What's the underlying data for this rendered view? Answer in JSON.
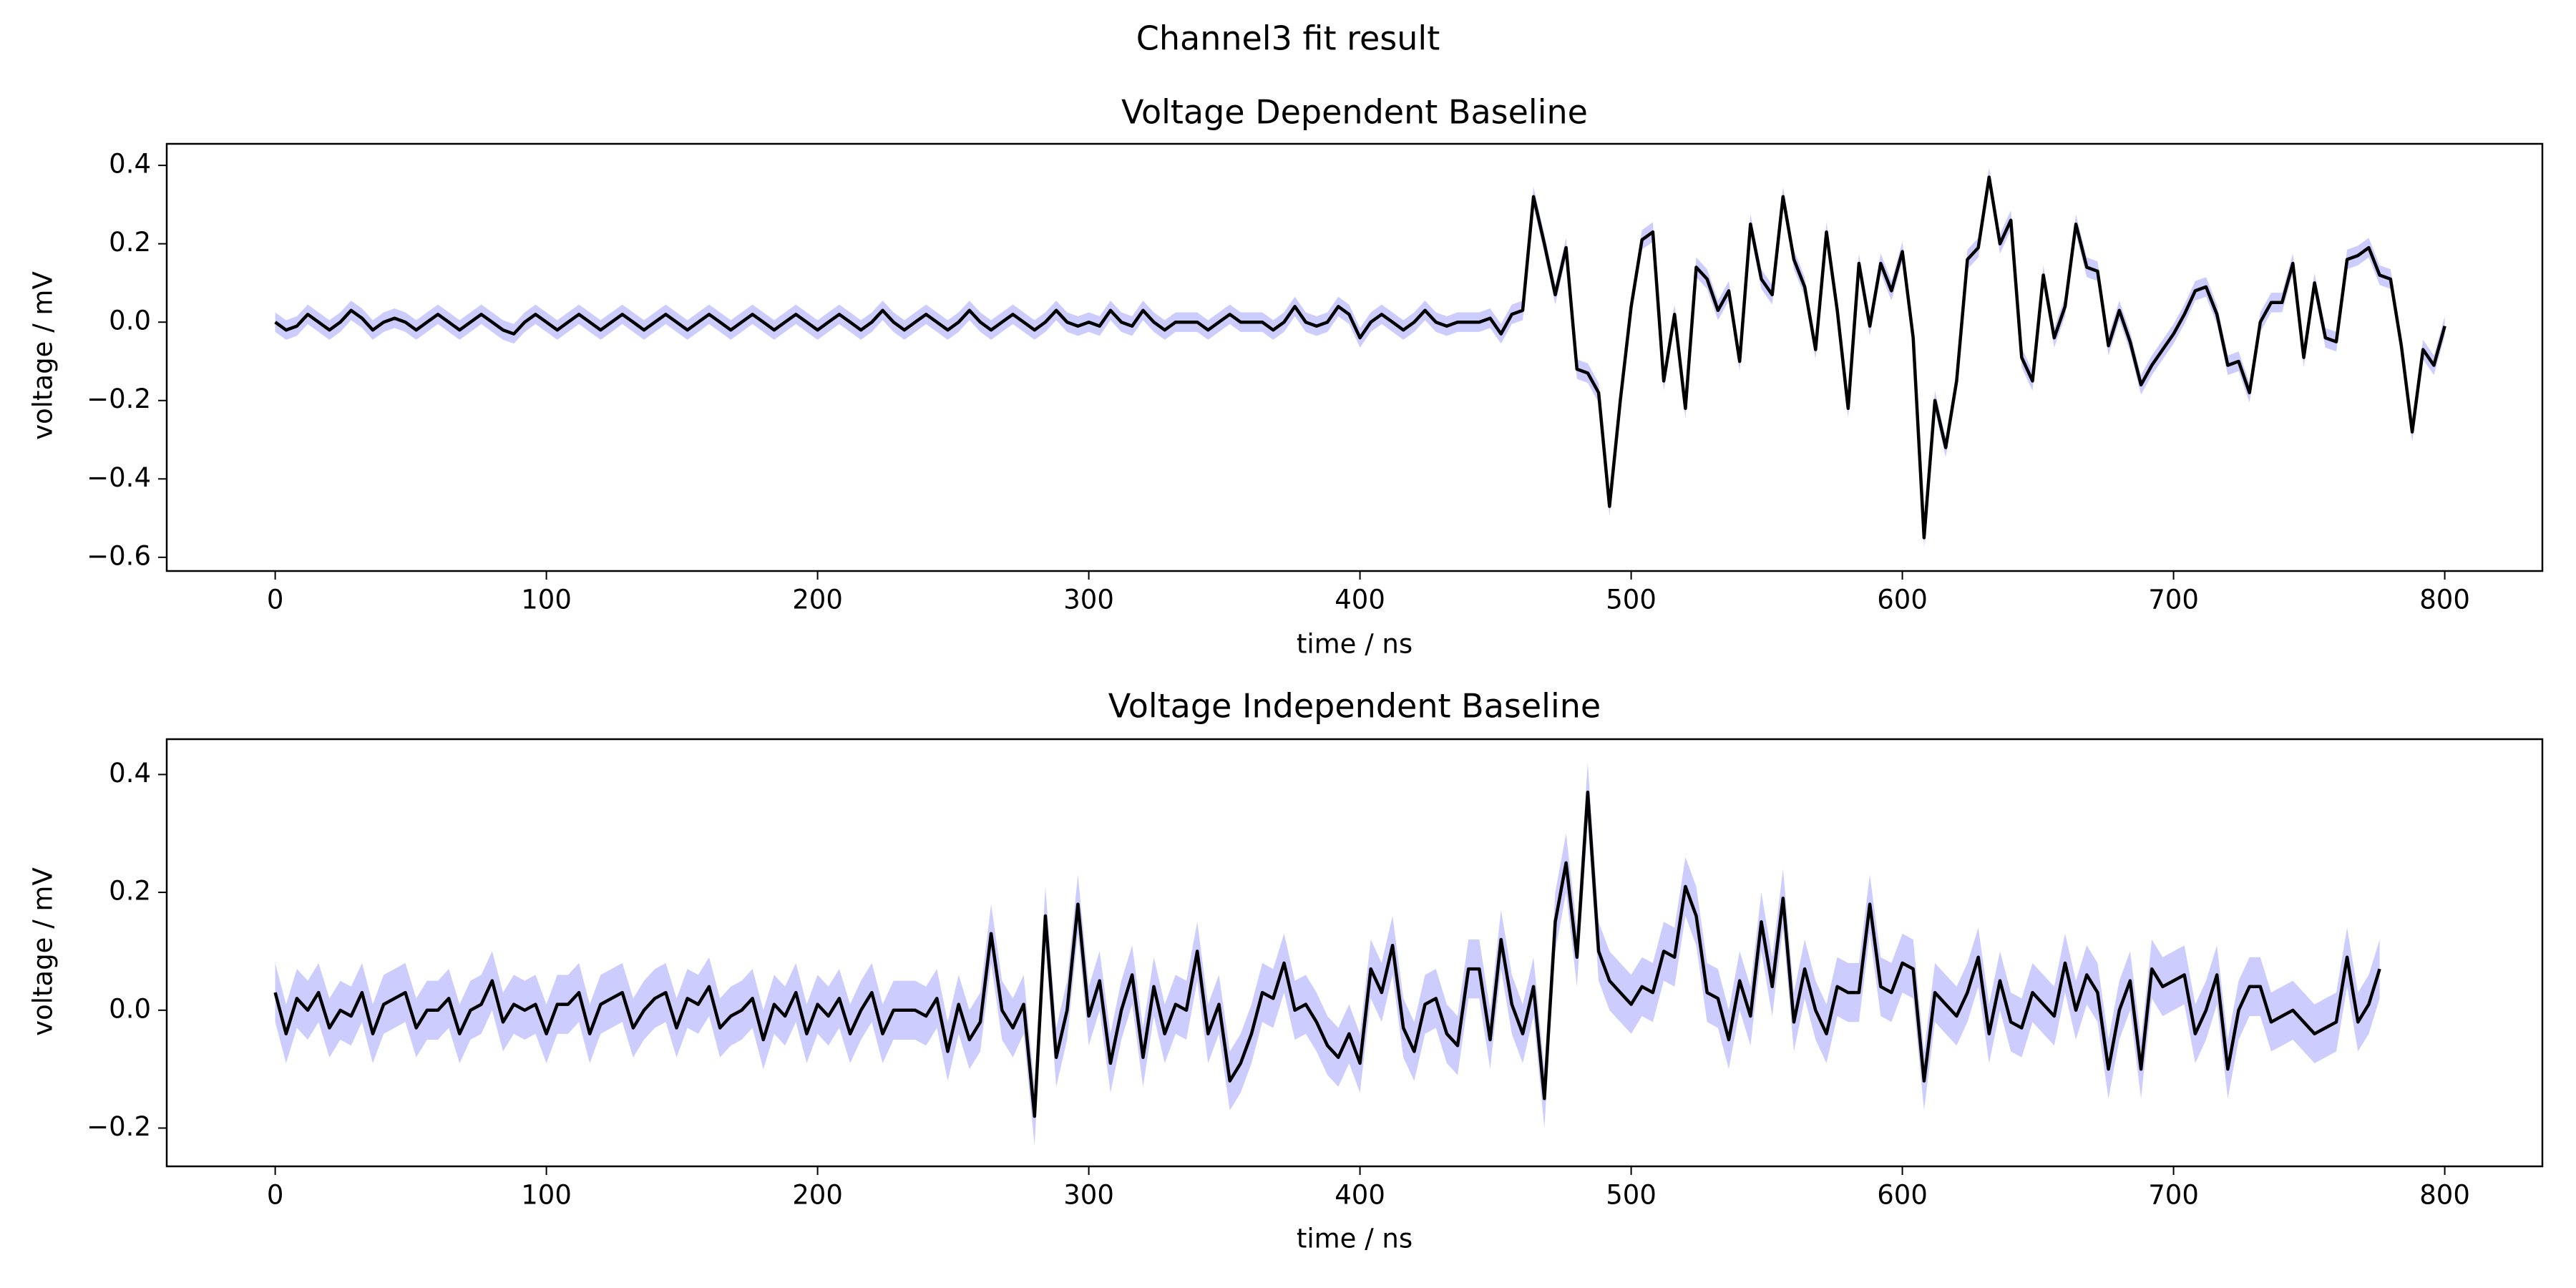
{
  "figure": {
    "suptitle": "Channel3 fit result",
    "line_color": "#000000",
    "band_color": "#ccccff"
  },
  "chart_data": [
    {
      "type": "line",
      "title": "Voltage Dependent Baseline",
      "xlabel": "time / ns",
      "ylabel": "voltage / mV",
      "xlim": [
        -40,
        836
      ],
      "ylim": [
        -0.635,
        0.455
      ],
      "xticks": [
        0,
        100,
        200,
        300,
        400,
        500,
        600,
        700,
        800
      ],
      "xtick_labels": [
        "0",
        "100",
        "200",
        "300",
        "400",
        "500",
        "600",
        "700",
        "800"
      ],
      "yticks": [
        -0.6,
        -0.4,
        -0.2,
        0.0,
        0.2,
        0.4
      ],
      "ytick_labels": [
        "−0.6",
        "−0.4",
        "−0.2",
        "0.0",
        "0.2",
        "0.4"
      ],
      "grid": false,
      "uncertainty_band": 0.025,
      "series": [
        {
          "x_start": 0,
          "x_step": 4,
          "values": [
            0.0,
            -0.02,
            -0.01,
            0.02,
            0.0,
            -0.02,
            0.0,
            0.03,
            0.01,
            -0.02,
            0.0,
            0.01,
            0.0,
            -0.02,
            0.0,
            0.02,
            0.0,
            -0.02,
            0.0,
            0.02,
            0.0,
            -0.02,
            -0.03,
            0.0,
            0.02,
            0.0,
            -0.02,
            0.0,
            0.02,
            0.0,
            -0.02,
            0.0,
            0.02,
            0.0,
            -0.02,
            0.0,
            0.02,
            0.0,
            -0.02,
            0.0,
            0.02,
            0.0,
            -0.02,
            0.0,
            0.02,
            0.0,
            -0.02,
            0.0,
            0.02,
            0.0,
            -0.02,
            0.0,
            0.02,
            0.0,
            -0.02,
            0.0,
            0.03,
            0.0,
            -0.02,
            0.0,
            0.02,
            0.0,
            -0.02,
            0.0,
            0.03,
            0.0,
            -0.02,
            0.0,
            0.02,
            0.0,
            -0.02,
            0.0,
            0.03,
            0.0,
            -0.01,
            0.0,
            -0.01,
            0.03,
            0.0,
            -0.01,
            0.03,
            0.0,
            -0.02,
            0.0,
            0.0,
            0.0,
            -0.02,
            0.0,
            0.02,
            0.0,
            0.0,
            0.0,
            -0.02,
            0.0,
            0.04,
            0.0,
            -0.01,
            0.0,
            0.04,
            0.02,
            -0.04,
            0.0,
            0.02,
            0.0,
            -0.02,
            0.0,
            0.03,
            0.0,
            -0.01,
            0.0,
            0.0,
            0.0,
            0.01,
            -0.03,
            0.02,
            0.03,
            0.32,
            0.2,
            0.07,
            0.19,
            -0.12,
            -0.13,
            -0.18,
            -0.47,
            -0.2,
            0.04,
            0.21,
            0.23,
            -0.15,
            0.02,
            -0.22,
            0.14,
            0.11,
            0.03,
            0.08,
            -0.1,
            0.25,
            0.11,
            0.07,
            0.32,
            0.16,
            0.09,
            -0.07,
            0.23,
            0.03,
            -0.22,
            0.15,
            -0.01,
            0.15,
            0.08,
            0.18,
            -0.04,
            -0.55,
            -0.2,
            -0.32,
            -0.15,
            0.16,
            0.19,
            0.37,
            0.2,
            0.26,
            -0.09,
            -0.15,
            0.12,
            -0.04,
            0.04,
            0.25,
            0.14,
            0.13,
            -0.06,
            0.03,
            -0.05,
            -0.16,
            -0.11,
            -0.07,
            -0.03,
            0.02,
            0.08,
            0.09,
            0.02,
            -0.11,
            -0.1,
            -0.18,
            0.0,
            0.05,
            0.05,
            0.15,
            -0.09,
            0.1,
            -0.04,
            -0.05,
            0.16,
            0.17,
            0.19,
            0.12,
            0.11,
            -0.06,
            -0.28,
            -0.07,
            -0.11,
            -0.01
          ]
        }
      ]
    },
    {
      "type": "line",
      "title": "Voltage Independent Baseline",
      "xlabel": "time / ns",
      "ylabel": "voltage / mV",
      "xlim": [
        -40,
        836
      ],
      "ylim": [
        -0.265,
        0.46
      ],
      "xticks": [
        0,
        100,
        200,
        300,
        400,
        500,
        600,
        700,
        800
      ],
      "xtick_labels": [
        "0",
        "100",
        "200",
        "300",
        "400",
        "500",
        "600",
        "700",
        "800"
      ],
      "yticks": [
        -0.2,
        0.0,
        0.2,
        0.4
      ],
      "ytick_labels": [
        "−0.2",
        "0.0",
        "0.2",
        "0.4"
      ],
      "grid": false,
      "uncertainty_band": 0.05,
      "series": [
        {
          "x_start": 0,
          "x_step": 4,
          "values": [
            0.03,
            -0.04,
            0.02,
            0.0,
            0.03,
            -0.03,
            0.0,
            -0.01,
            0.03,
            -0.04,
            0.01,
            0.02,
            0.03,
            -0.03,
            0.0,
            0.0,
            0.02,
            -0.04,
            0.0,
            0.01,
            0.05,
            -0.02,
            0.01,
            0.0,
            0.01,
            -0.04,
            0.01,
            0.01,
            0.03,
            -0.04,
            0.01,
            0.02,
            0.03,
            -0.03,
            0.0,
            0.02,
            0.03,
            -0.03,
            0.02,
            0.01,
            0.04,
            -0.03,
            -0.01,
            0.0,
            0.02,
            -0.05,
            0.01,
            -0.01,
            0.03,
            -0.04,
            0.01,
            -0.01,
            0.02,
            -0.04,
            0.0,
            0.03,
            -0.04,
            0.0,
            0.0,
            0.0,
            -0.01,
            0.02,
            -0.07,
            0.01,
            -0.05,
            -0.02,
            0.13,
            0.0,
            -0.03,
            0.01,
            -0.18,
            0.16,
            -0.08,
            0.0,
            0.18,
            -0.01,
            0.05,
            -0.09,
            0.0,
            0.06,
            -0.08,
            0.04,
            -0.04,
            0.01,
            0.0,
            0.1,
            -0.04,
            0.01,
            -0.12,
            -0.09,
            -0.04,
            0.03,
            0.02,
            0.08,
            0.0,
            0.01,
            -0.02,
            -0.06,
            -0.08,
            -0.04,
            -0.09,
            0.07,
            0.03,
            0.11,
            -0.03,
            -0.07,
            0.01,
            0.02,
            -0.04,
            -0.06,
            0.07,
            0.07,
            -0.05,
            0.12,
            0.01,
            -0.04,
            0.04,
            -0.15,
            0.15,
            0.25,
            0.09,
            0.37,
            0.1,
            0.05,
            0.03,
            0.01,
            0.04,
            0.03,
            0.1,
            0.09,
            0.21,
            0.16,
            0.03,
            0.02,
            -0.05,
            0.05,
            -0.01,
            0.15,
            0.04,
            0.19,
            -0.02,
            0.07,
            0.0,
            -0.04,
            0.04,
            0.03,
            0.03,
            0.18,
            0.04,
            0.03,
            0.08,
            0.07,
            -0.12,
            0.03,
            0.01,
            -0.01,
            0.03,
            0.09,
            -0.04,
            0.05,
            -0.02,
            -0.03,
            0.03,
            0.01,
            -0.01,
            0.08,
            0.0,
            0.06,
            0.03,
            -0.1,
            0.0,
            0.05,
            -0.1,
            0.07,
            0.04,
            0.05,
            0.06,
            -0.04,
            0.0,
            0.06,
            -0.1,
            0.0,
            0.04,
            0.04,
            -0.02,
            -0.01,
            0.0,
            -0.02,
            -0.04,
            -0.03,
            -0.02,
            0.09,
            -0.02,
            0.01,
            0.07
          ]
        }
      ]
    }
  ]
}
